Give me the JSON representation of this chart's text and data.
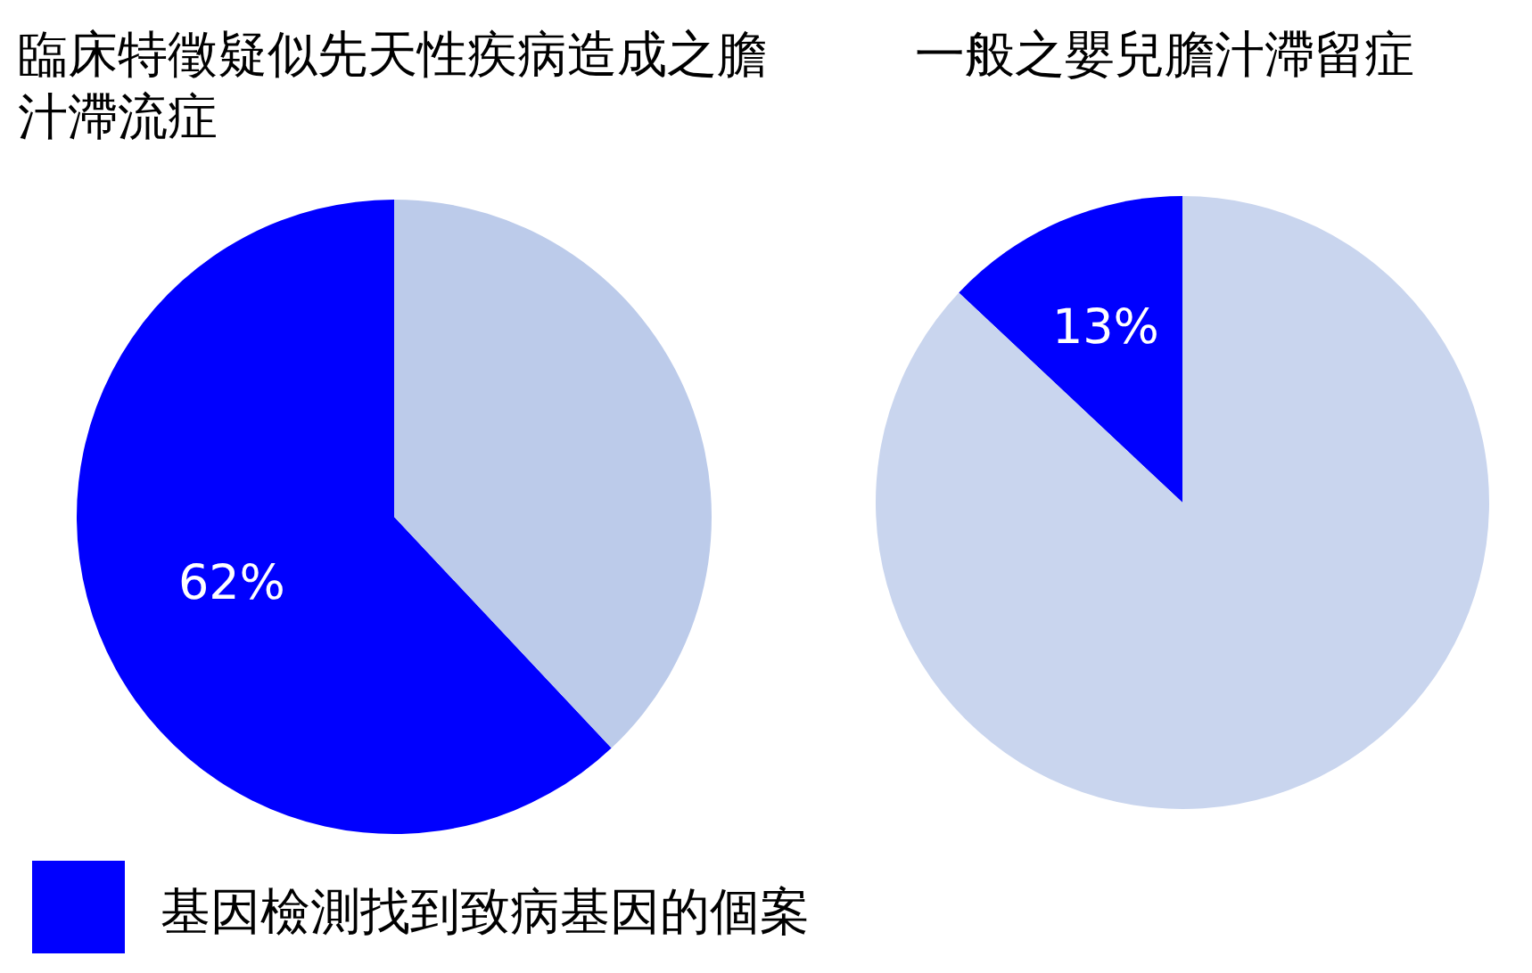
{
  "chart_data": [
    {
      "type": "pie",
      "title": "臨床特徵疑似先天性疾病造成之膽汁滯流症",
      "categories": [
        "基因檢測找到致病基因的個案",
        null
      ],
      "values": [
        62,
        38
      ],
      "colors": [
        "#0000ff",
        "#bccbea"
      ],
      "value_labels": [
        "62%",
        null
      ],
      "legend": "bottom left"
    },
    {
      "type": "pie",
      "title": "一般之嬰兒膽汁滯留症",
      "categories": [
        null,
        null
      ],
      "values": [
        13,
        87
      ],
      "colors": [
        "#0000ff",
        "#c9d5ee"
      ],
      "value_labels": [
        "13%",
        null
      ]
    }
  ]
}
